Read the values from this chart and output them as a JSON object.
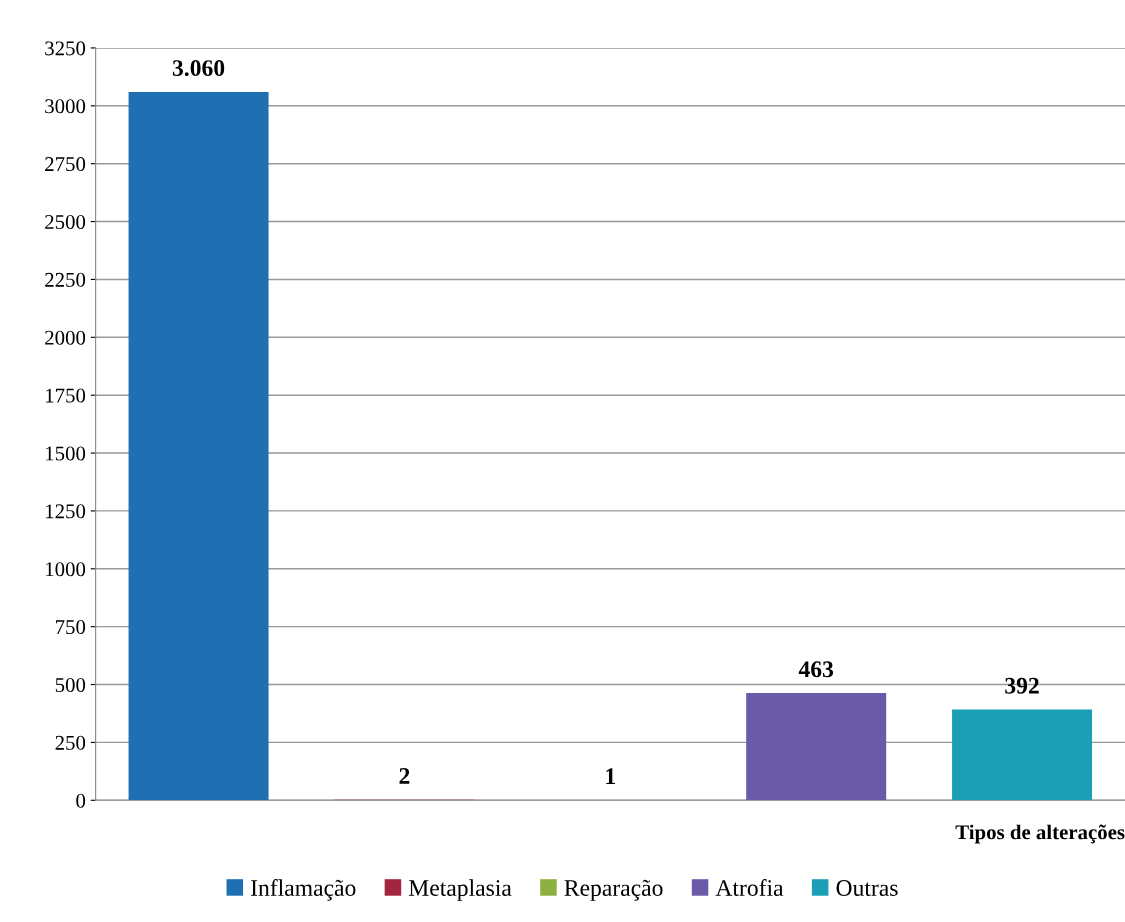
{
  "chart_data": {
    "type": "bar",
    "xlabel": "Tipos de alterações",
    "categories": [
      null
    ],
    "series": [
      {
        "name": "Inflamação",
        "color": "#1f6fb3",
        "values": [
          3060
        ],
        "value_labels": [
          "3.060"
        ]
      },
      {
        "name": "Metaplasia",
        "color": "#a3263e",
        "values": [
          2
        ],
        "value_labels": [
          "2"
        ]
      },
      {
        "name": "Reparação",
        "color": "#8db043",
        "values": [
          1
        ],
        "value_labels": [
          "1"
        ]
      },
      {
        "name": "Atrofia",
        "color": "#6b5aa8",
        "values": [
          463
        ],
        "value_labels": [
          "463"
        ]
      },
      {
        "name": "Outras",
        "color": "#1a9fb7",
        "values": [
          392
        ],
        "value_labels": [
          "392"
        ]
      }
    ],
    "ylim": [
      0,
      3250
    ],
    "yticks": [
      0,
      250,
      500,
      750,
      1000,
      1250,
      1500,
      1750,
      2000,
      2250,
      2500,
      2750,
      3000,
      3250
    ],
    "grid": "y",
    "legend": "bottom"
  }
}
